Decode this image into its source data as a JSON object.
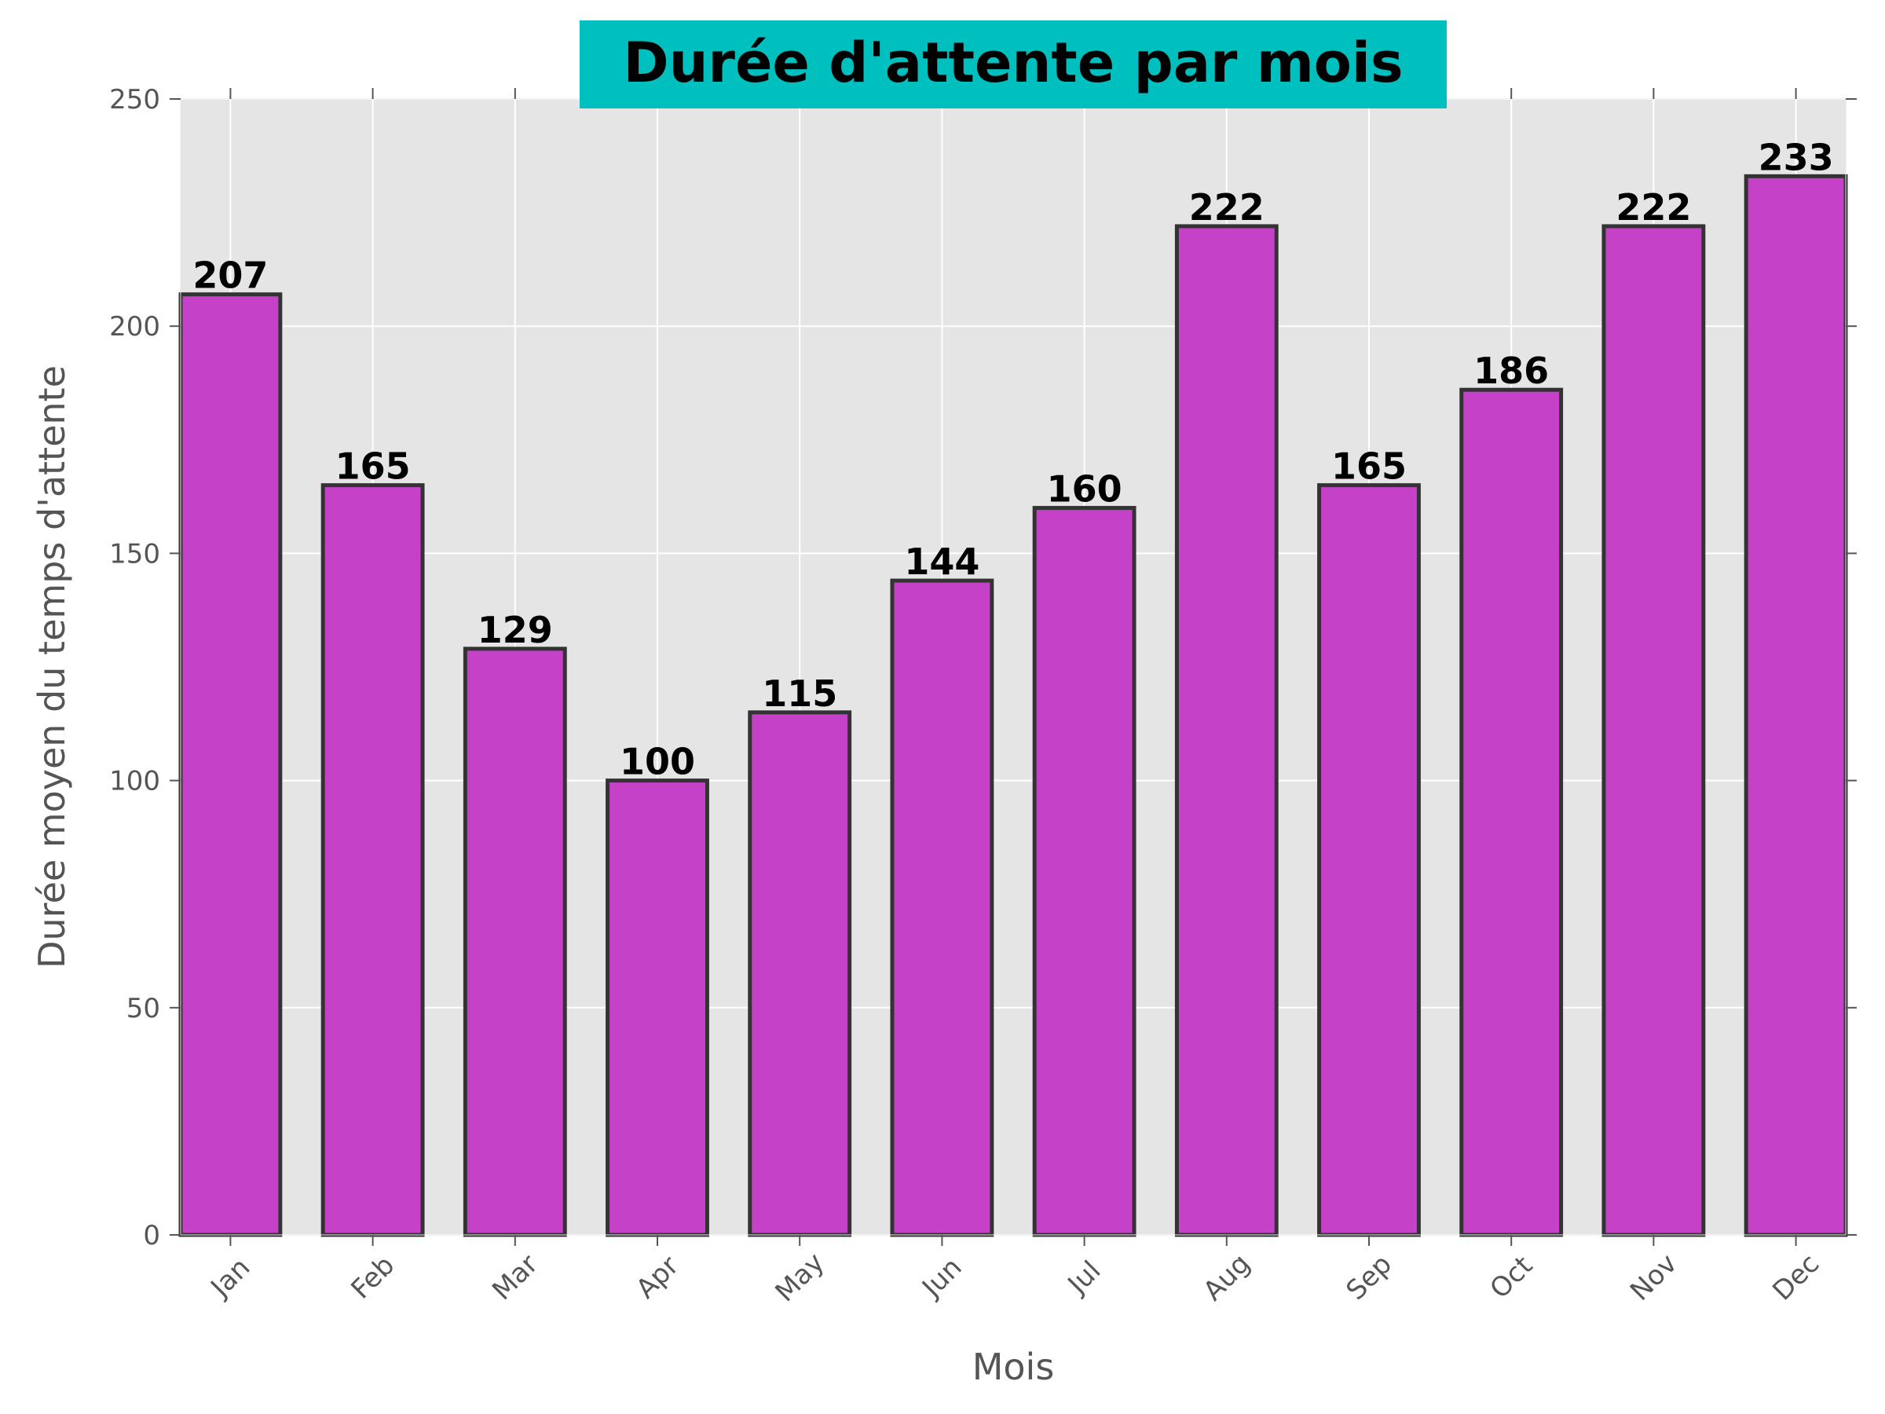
{
  "chart_data": {
    "type": "bar",
    "title": "Durée d'attente par mois",
    "xlabel": "Mois",
    "ylabel": "Durée moyen du temps d'attente",
    "categories": [
      "Jan",
      "Feb",
      "Mar",
      "Apr",
      "May",
      "Jun",
      "Jul",
      "Aug",
      "Sep",
      "Oct",
      "Nov",
      "Dec"
    ],
    "values": [
      207,
      165,
      129,
      100,
      115,
      144,
      160,
      222,
      165,
      186,
      222,
      233
    ],
    "ylim": [
      0,
      250
    ],
    "yticks": [
      0,
      50,
      100,
      150,
      200,
      250
    ],
    "grid": true,
    "colors": {
      "bar_fill": "#c542c8",
      "bar_edge": "#333333",
      "plot_background": "#e5e5e5",
      "grid": "#ffffff",
      "title_background": "#00bfbf"
    }
  }
}
